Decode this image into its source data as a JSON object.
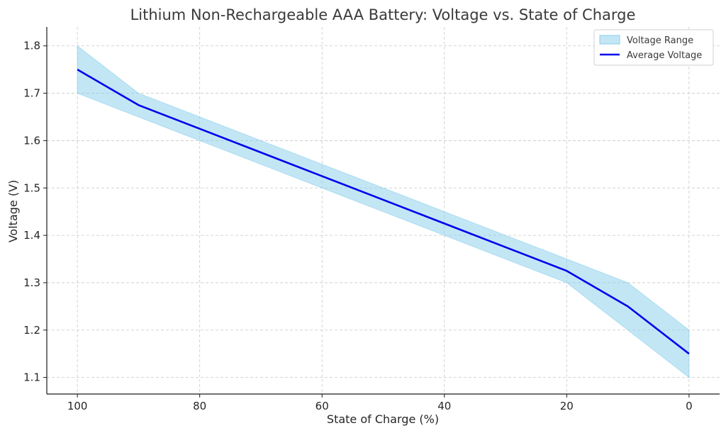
{
  "chart_data": {
    "type": "line",
    "title": "Lithium Non-Rechargeable AAA Battery: Voltage vs. State of Charge",
    "xlabel": "State of Charge (%)",
    "ylabel": "Voltage (V)",
    "x_reversed": true,
    "xlim": [
      105,
      -5
    ],
    "ylim": [
      1.065,
      1.84
    ],
    "x_ticks": [
      100,
      80,
      60,
      40,
      20,
      0
    ],
    "y_ticks": [
      1.1,
      1.2,
      1.3,
      1.4,
      1.5,
      1.6,
      1.7,
      1.8
    ],
    "x_tick_labels": [
      "100",
      "80",
      "60",
      "40",
      "20",
      "0"
    ],
    "y_tick_labels": [
      "1.1",
      "1.2",
      "1.3",
      "1.4",
      "1.5",
      "1.6",
      "1.7",
      "1.8"
    ],
    "grid": true,
    "legend_position": "top-right",
    "x": [
      100,
      90,
      80,
      70,
      60,
      50,
      40,
      30,
      20,
      10,
      0
    ],
    "series": [
      {
        "name": "Average Voltage",
        "kind": "line",
        "color": "#0000ee",
        "values": [
          1.75,
          1.675,
          1.625,
          1.575,
          1.525,
          1.475,
          1.425,
          1.375,
          1.325,
          1.25,
          1.15
        ]
      },
      {
        "name": "Voltage Range",
        "kind": "band",
        "color": "#87ceeb",
        "lower": [
          1.7,
          1.65,
          1.6,
          1.55,
          1.5,
          1.45,
          1.4,
          1.35,
          1.3,
          1.2,
          1.1
        ],
        "upper": [
          1.8,
          1.7,
          1.65,
          1.6,
          1.55,
          1.5,
          1.45,
          1.4,
          1.35,
          1.3,
          1.2
        ]
      }
    ],
    "legend": [
      {
        "label": "Voltage Range",
        "kind": "band"
      },
      {
        "label": "Average Voltage",
        "kind": "line"
      }
    ]
  }
}
